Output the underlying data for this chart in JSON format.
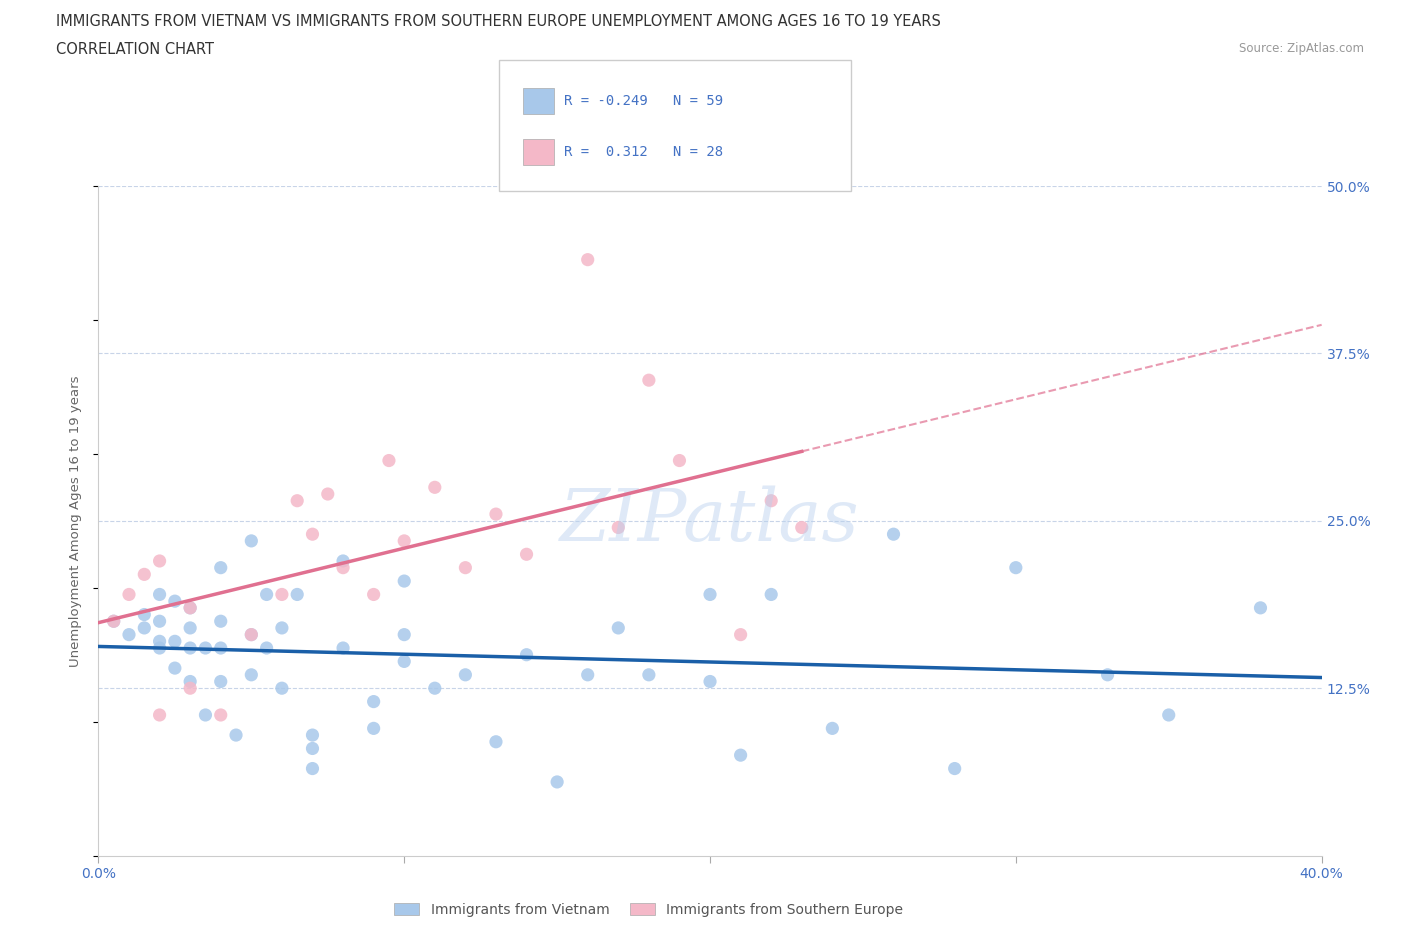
{
  "title_line1": "IMMIGRANTS FROM VIETNAM VS IMMIGRANTS FROM SOUTHERN EUROPE UNEMPLOYMENT AMONG AGES 16 TO 19 YEARS",
  "title_line2": "CORRELATION CHART",
  "source_text": "Source: ZipAtlas.com",
  "ylabel": "Unemployment Among Ages 16 to 19 years",
  "xlim": [
    0.0,
    0.4
  ],
  "ylim": [
    0.0,
    0.5
  ],
  "watermark": "ZIPatlas",
  "blue_color": "#a8c8ea",
  "pink_color": "#f4b8c8",
  "blue_line_color": "#1a5fa8",
  "pink_line_color": "#e07090",
  "axis_color": "#4472c4",
  "grid_color": "#c8d4e8",
  "background_color": "#ffffff",
  "vietnam_x": [
    0.005,
    0.01,
    0.015,
    0.015,
    0.02,
    0.02,
    0.02,
    0.02,
    0.025,
    0.025,
    0.025,
    0.03,
    0.03,
    0.03,
    0.03,
    0.035,
    0.035,
    0.04,
    0.04,
    0.04,
    0.04,
    0.045,
    0.05,
    0.05,
    0.05,
    0.055,
    0.055,
    0.06,
    0.06,
    0.065,
    0.07,
    0.07,
    0.07,
    0.08,
    0.08,
    0.09,
    0.09,
    0.1,
    0.1,
    0.1,
    0.11,
    0.12,
    0.13,
    0.14,
    0.15,
    0.16,
    0.17,
    0.18,
    0.2,
    0.2,
    0.21,
    0.22,
    0.24,
    0.26,
    0.28,
    0.3,
    0.33,
    0.35,
    0.38
  ],
  "vietnam_y": [
    0.175,
    0.165,
    0.17,
    0.18,
    0.155,
    0.16,
    0.175,
    0.195,
    0.14,
    0.16,
    0.19,
    0.13,
    0.155,
    0.17,
    0.185,
    0.105,
    0.155,
    0.13,
    0.155,
    0.175,
    0.215,
    0.09,
    0.135,
    0.165,
    0.235,
    0.155,
    0.195,
    0.125,
    0.17,
    0.195,
    0.065,
    0.08,
    0.09,
    0.155,
    0.22,
    0.095,
    0.115,
    0.145,
    0.165,
    0.205,
    0.125,
    0.135,
    0.085,
    0.15,
    0.055,
    0.135,
    0.17,
    0.135,
    0.13,
    0.195,
    0.075,
    0.195,
    0.095,
    0.24,
    0.065,
    0.215,
    0.135,
    0.105,
    0.185
  ],
  "europe_x": [
    0.005,
    0.01,
    0.015,
    0.02,
    0.02,
    0.03,
    0.03,
    0.04,
    0.05,
    0.06,
    0.065,
    0.07,
    0.075,
    0.08,
    0.09,
    0.095,
    0.1,
    0.11,
    0.12,
    0.13,
    0.14,
    0.16,
    0.17,
    0.18,
    0.19,
    0.21,
    0.22,
    0.23
  ],
  "europe_y": [
    0.175,
    0.195,
    0.21,
    0.105,
    0.22,
    0.125,
    0.185,
    0.105,
    0.165,
    0.195,
    0.265,
    0.24,
    0.27,
    0.215,
    0.195,
    0.295,
    0.235,
    0.275,
    0.215,
    0.255,
    0.225,
    0.445,
    0.245,
    0.355,
    0.295,
    0.165,
    0.265,
    0.245
  ],
  "title_fontsize": 10.5,
  "axis_label_fontsize": 9.5,
  "tick_fontsize": 10,
  "legend_r1_val": "-0.249",
  "legend_n1_val": "59",
  "legend_r2_val": "0.312",
  "legend_n2_val": "28"
}
